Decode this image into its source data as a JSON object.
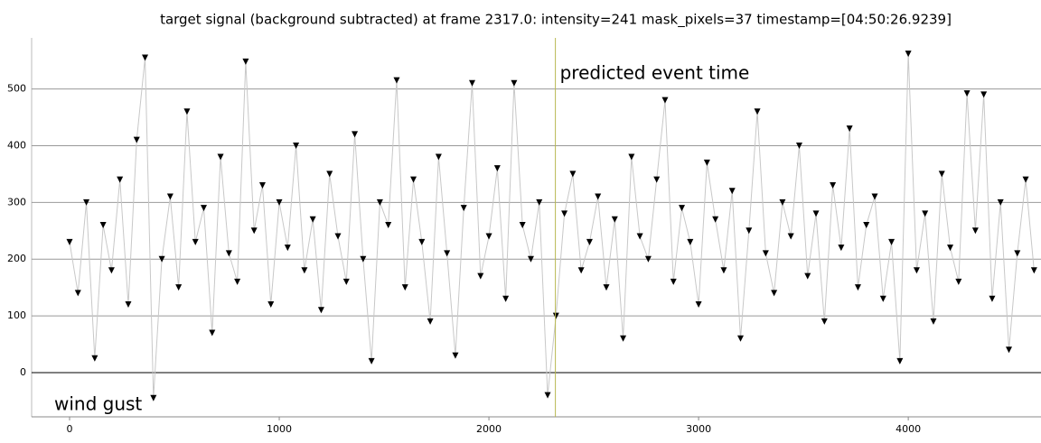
{
  "chart_data": {
    "type": "line",
    "title": "target signal (background subtracted) at frame 2317.0: intensity=241 mask_pixels=37 timestamp=[04:50:26.9239]",
    "x": [
      0,
      40,
      80,
      120,
      160,
      200,
      240,
      280,
      320,
      360,
      400,
      440,
      480,
      520,
      560,
      600,
      640,
      680,
      720,
      760,
      800,
      840,
      880,
      920,
      960,
      1000,
      1040,
      1080,
      1120,
      1160,
      1200,
      1240,
      1280,
      1320,
      1360,
      1400,
      1440,
      1480,
      1520,
      1560,
      1600,
      1640,
      1680,
      1720,
      1760,
      1800,
      1840,
      1880,
      1920,
      1960,
      2000,
      2040,
      2080,
      2120,
      2160,
      2200,
      2240,
      2280,
      2320,
      2360,
      2400,
      2440,
      2480,
      2520,
      2560,
      2600,
      2640,
      2680,
      2720,
      2760,
      2800,
      2840,
      2880,
      2920,
      2960,
      3000,
      3040,
      3080,
      3120,
      3160,
      3200,
      3240,
      3280,
      3320,
      3360,
      3400,
      3440,
      3480,
      3520,
      3560,
      3600,
      3640,
      3680,
      3720,
      3760,
      3800,
      3840,
      3880,
      3920,
      3960,
      4000,
      4040,
      4080,
      4120,
      4160,
      4200,
      4240,
      4280,
      4320,
      4360,
      4400,
      4440,
      4480,
      4520,
      4560,
      4600
    ],
    "series": [
      {
        "color": "#000000",
        "line_color": "#c8c8c8",
        "values": [
          230,
          140,
          300,
          25,
          260,
          180,
          340,
          120,
          410,
          555,
          -45,
          200,
          310,
          150,
          460,
          230,
          290,
          70,
          380,
          210,
          160,
          548,
          250,
          330,
          120,
          300,
          220,
          400,
          180,
          270,
          110,
          350,
          240,
          160,
          420,
          200,
          20,
          300,
          260,
          515,
          150,
          340,
          230,
          90,
          380,
          210,
          30,
          290,
          510,
          170,
          240,
          360,
          130,
          510,
          260,
          200,
          300,
          -40,
          100,
          280,
          350,
          180,
          230,
          310,
          150,
          270,
          60,
          380,
          240,
          200,
          340,
          480,
          160,
          290,
          230,
          120,
          370,
          270,
          180,
          320,
          60,
          250,
          460,
          210,
          140,
          300,
          240,
          400,
          170,
          280,
          90,
          330,
          220,
          430,
          150,
          260,
          310,
          130,
          230,
          20,
          562,
          180,
          280,
          90,
          350,
          220,
          160,
          492,
          250,
          490,
          130,
          300,
          40,
          210,
          340,
          180
        ]
      }
    ],
    "xlim": [
      -181,
      4633
    ],
    "ylim": [
      -78,
      590
    ],
    "xticks": [
      0,
      1000,
      2000,
      3000,
      4000
    ],
    "yticks": [
      0,
      100,
      200,
      300,
      400,
      500
    ],
    "grid": true,
    "event_line": {
      "x": 2317,
      "label": "predicted event time",
      "color": "#b8b850"
    },
    "annotations": [
      "wind gust"
    ]
  }
}
